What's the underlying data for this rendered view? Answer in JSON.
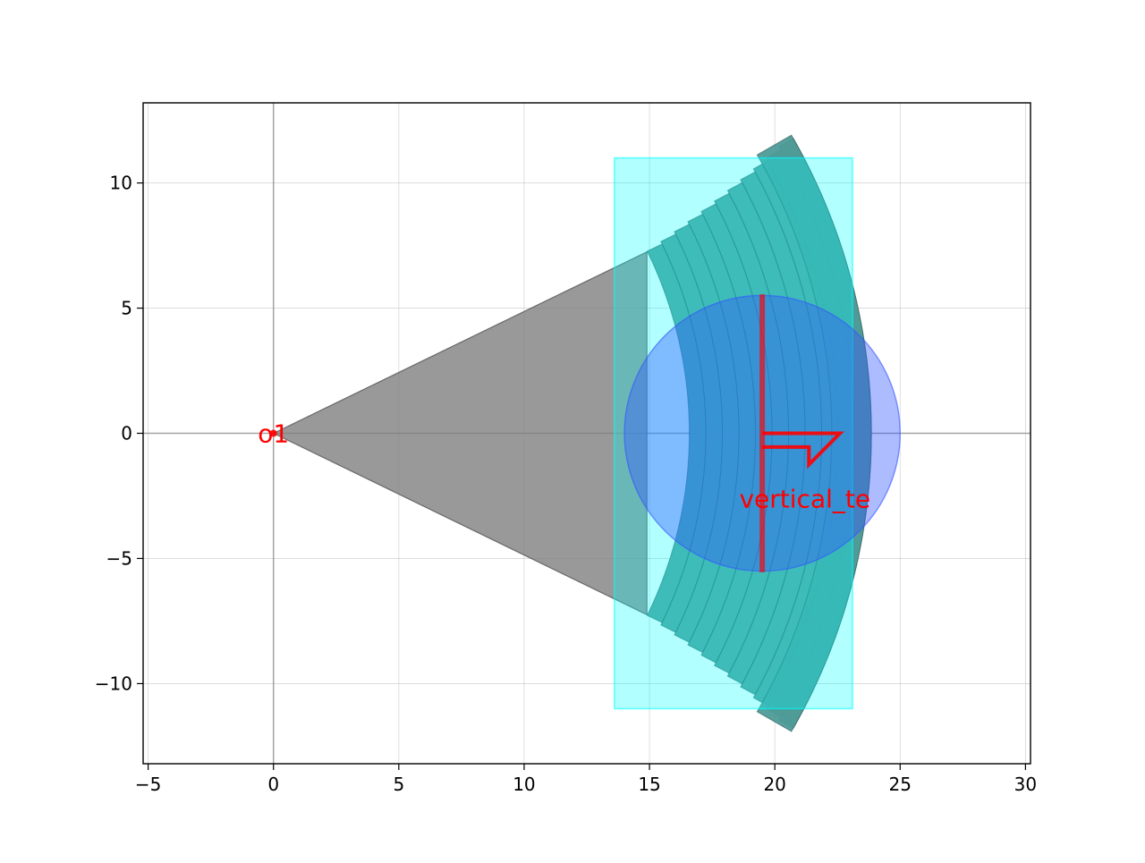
{
  "chart_data": {
    "type": "diagram",
    "title": "",
    "xlabel": "",
    "ylabel": "",
    "xlim": [
      -5.2,
      30.2
    ],
    "ylim": [
      -13.2,
      13.2
    ],
    "aspect": "equal",
    "grid": true,
    "xticks": [
      -5,
      0,
      5,
      10,
      15,
      20,
      25,
      30
    ],
    "yticks": [
      -10,
      -5,
      0,
      5,
      10
    ],
    "reference_axes": {
      "x": 0,
      "y": 0,
      "color": "#888888"
    },
    "colors": {
      "cone": "#808080",
      "grating": "#4f9b98",
      "bounding_box": "#00ffff",
      "circle": "#3355ff",
      "annotation": "#ff0000"
    },
    "cone": {
      "apex": [
        0,
        0
      ],
      "edge_points": [
        [
          14.9,
          7.25
        ],
        [
          14.9,
          -7.25
        ]
      ]
    },
    "grating": {
      "center": [
        0,
        0
      ],
      "num_teeth": 12,
      "inner_radius": 16.59,
      "period": 0.66,
      "half_angle_deg": 26,
      "half_angle_step_deg": 0.36,
      "outer_radius": 22.27
    },
    "bounding_box": {
      "xmin": 13.6,
      "xmax": 23.1,
      "ymin": -11,
      "ymax": 11
    },
    "circle": {
      "center": [
        19.5,
        0
      ],
      "radius": 5.5
    },
    "ports": [
      {
        "name": "o1",
        "position": [
          0,
          0
        ],
        "orientation_deg": 180
      },
      {
        "name": "vertical_te",
        "position": [
          19.5,
          0
        ],
        "orientation_deg": 0,
        "width": 11.1,
        "arrow_length": 3.1,
        "label_position": [
          21.2,
          -2.6
        ]
      }
    ]
  }
}
